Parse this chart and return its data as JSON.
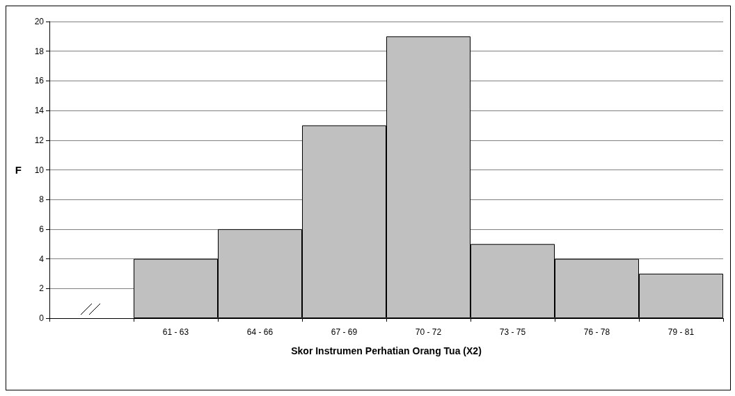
{
  "chart_data": {
    "type": "bar",
    "xlabel": "Skor Instrumen Perhatian Orang Tua (X2)",
    "ylabel": "F",
    "categories": [
      null,
      "61 - 63",
      "64 - 66",
      "67 - 69",
      "70 - 72",
      "73 - 75",
      "76 - 78",
      "79 - 81"
    ],
    "values": [
      null,
      4,
      6,
      13,
      19,
      5,
      4,
      3
    ],
    "color": "#c0c0c0",
    "ylim": [
      0,
      20
    ],
    "yticks": [
      0,
      2,
      4,
      6,
      8,
      10,
      12,
      14,
      16,
      18,
      20
    ],
    "grid": "y"
  }
}
